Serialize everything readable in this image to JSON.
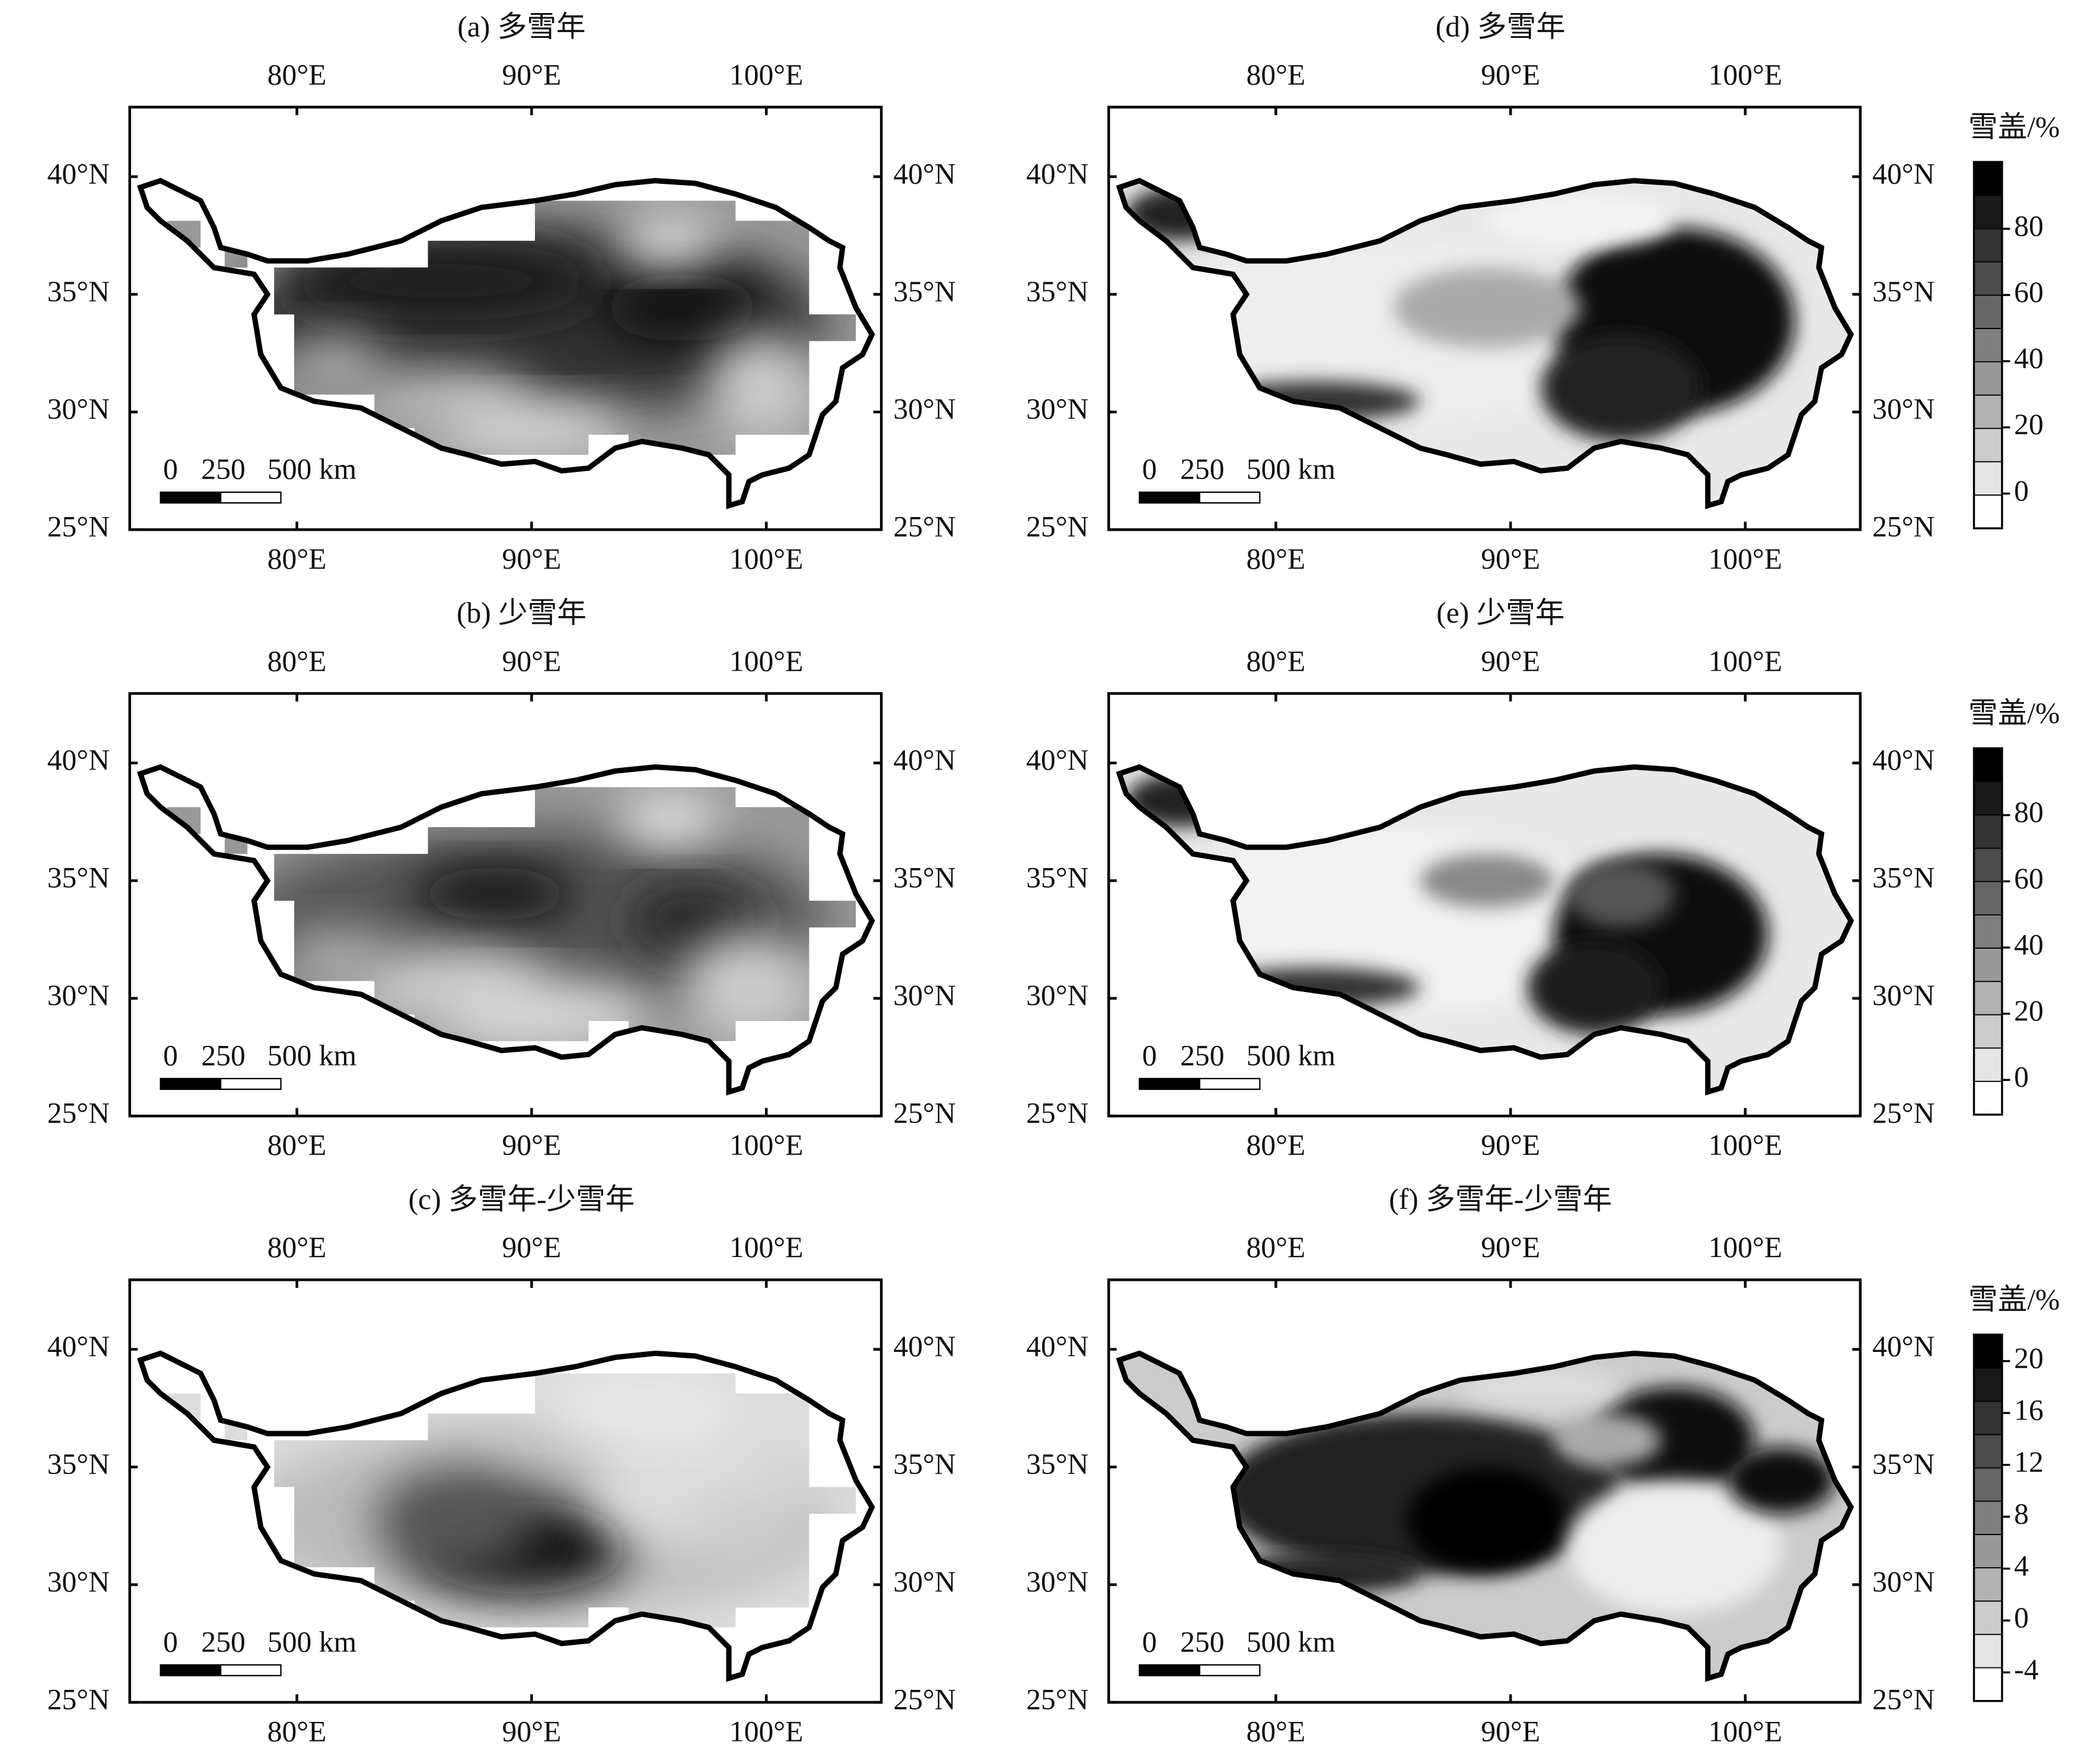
{
  "panels": [
    {
      "title": "(a) 多雪年",
      "lon_ticks": [
        {
          "value": 80,
          "label": "80°E"
        },
        {
          "value": 90,
          "label": "90°E"
        },
        {
          "value": 100,
          "label": "100°E"
        }
      ],
      "lat_ticks": [
        {
          "value": 25,
          "label": "25°N"
        },
        {
          "value": 30,
          "label": "30°N"
        },
        {
          "value": 35,
          "label": "35°N"
        },
        {
          "value": 40,
          "label": "40°N"
        }
      ],
      "scale_bar": [
        "0",
        "250",
        "500 km"
      ]
    },
    {
      "title": "(b) 少雪年",
      "lon_ticks": [
        {
          "value": 80,
          "label": "80°E"
        },
        {
          "value": 90,
          "label": "90°E"
        },
        {
          "value": 100,
          "label": "100°E"
        }
      ],
      "lat_ticks": [
        {
          "value": 25,
          "label": "25°N"
        },
        {
          "value": 30,
          "label": "30°N"
        },
        {
          "value": 35,
          "label": "35°N"
        },
        {
          "value": 40,
          "label": "40°N"
        }
      ],
      "scale_bar": [
        "0",
        "250",
        "500 km"
      ]
    },
    {
      "title": "(c) 多雪年-少雪年",
      "lon_ticks": [
        {
          "value": 80,
          "label": "80°E"
        },
        {
          "value": 90,
          "label": "90°E"
        },
        {
          "value": 100,
          "label": "100°E"
        }
      ],
      "lat_ticks": [
        {
          "value": 25,
          "label": "25°N"
        },
        {
          "value": 30,
          "label": "30°N"
        },
        {
          "value": 35,
          "label": "35°N"
        },
        {
          "value": 40,
          "label": "40°N"
        }
      ],
      "scale_bar": [
        "0",
        "250",
        "500 km"
      ]
    },
    {
      "title": "(d) 多雪年",
      "lon_ticks": [
        {
          "value": 80,
          "label": "80°E"
        },
        {
          "value": 90,
          "label": "90°E"
        },
        {
          "value": 100,
          "label": "100°E"
        }
      ],
      "lat_ticks": [
        {
          "value": 25,
          "label": "25°N"
        },
        {
          "value": 30,
          "label": "30°N"
        },
        {
          "value": 35,
          "label": "35°N"
        },
        {
          "value": 40,
          "label": "40°N"
        }
      ],
      "scale_bar": [
        "0",
        "250",
        "500 km"
      ],
      "colorbar": {
        "label": "雪盖/%",
        "ticks": [
          0,
          20,
          40,
          60,
          80
        ]
      }
    },
    {
      "title": "(e) 少雪年",
      "lon_ticks": [
        {
          "value": 80,
          "label": "80°E"
        },
        {
          "value": 90,
          "label": "90°E"
        },
        {
          "value": 100,
          "label": "100°E"
        }
      ],
      "lat_ticks": [
        {
          "value": 25,
          "label": "25°N"
        },
        {
          "value": 30,
          "label": "30°N"
        },
        {
          "value": 35,
          "label": "35°N"
        },
        {
          "value": 40,
          "label": "40°N"
        }
      ],
      "scale_bar": [
        "0",
        "250",
        "500 km"
      ],
      "colorbar": {
        "label": "雪盖/%",
        "ticks": [
          0,
          20,
          40,
          60,
          80
        ]
      }
    },
    {
      "title": "(f) 多雪年-少雪年",
      "lon_ticks": [
        {
          "value": 80,
          "label": "80°E"
        },
        {
          "value": 90,
          "label": "90°E"
        },
        {
          "value": 100,
          "label": "100°E"
        }
      ],
      "lat_ticks": [
        {
          "value": 25,
          "label": "25°N"
        },
        {
          "value": 30,
          "label": "30°N"
        },
        {
          "value": 35,
          "label": "35°N"
        },
        {
          "value": 40,
          "label": "40°N"
        }
      ],
      "scale_bar": [
        "0",
        "250",
        "500 km"
      ],
      "colorbar": {
        "label": "雪盖/%",
        "ticks": [
          -4,
          0,
          4,
          8,
          12,
          16,
          20
        ]
      }
    }
  ]
}
